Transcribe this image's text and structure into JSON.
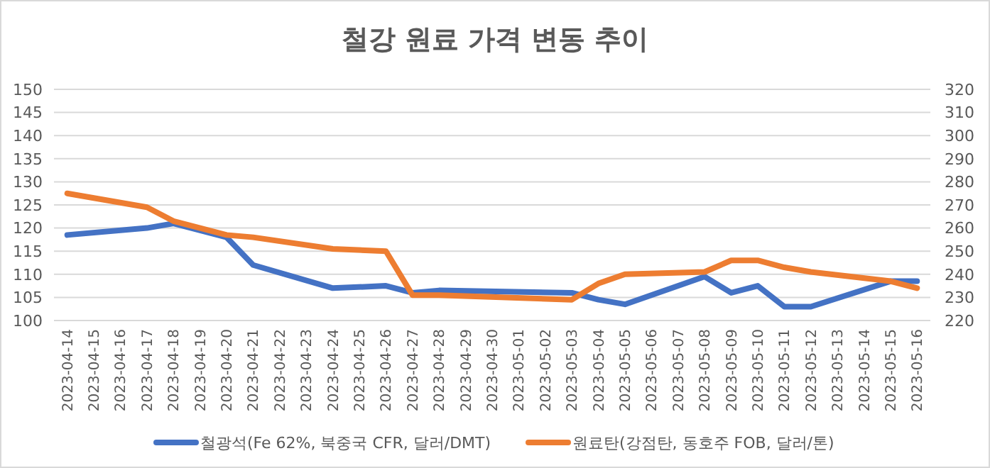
{
  "chart_data": {
    "type": "line",
    "title": "철강 원료 가격 변동 추이",
    "x": [
      "2023-04-14",
      "2023-04-17",
      "2023-04-18",
      "2023-04-20",
      "2023-04-21",
      "2023-04-24",
      "2023-04-26",
      "2023-04-27",
      "2023-04-28",
      "2023-05-03",
      "2023-05-04",
      "2023-05-05",
      "2023-05-08",
      "2023-05-09",
      "2023-05-10",
      "2023-05-11",
      "2023-05-12",
      "2023-05-15",
      "2023-05-16"
    ],
    "series": [
      {
        "name": "철광석(Fe 62%, 북중국 CFR, 달러/DMT)",
        "color": "#4472c4",
        "values": [
          118.5,
          120,
          121,
          118,
          112,
          107,
          107.5,
          106,
          106.5,
          106,
          104.5,
          103.5,
          109.5,
          106,
          107.5,
          103,
          103,
          108.5,
          108.5
        ]
      },
      {
        "name": "원료탄(강점탄, 동호주 FOB, 달러/톤)",
        "color": "#ed7d31",
        "axis": "y2",
        "values": [
          275,
          269,
          263,
          257,
          256,
          251,
          250,
          231,
          231,
          229,
          236,
          240,
          241,
          246,
          246,
          243,
          241,
          237,
          234
        ]
      }
    ],
    "xlim": [
      "2023-04-13T12:00",
      "2023-05-16T12:00"
    ],
    "xticks": [
      "2023-04-14",
      "2023-04-15",
      "2023-04-16",
      "2023-04-17",
      "2023-04-18",
      "2023-04-19",
      "2023-04-20",
      "2023-04-21",
      "2023-04-22",
      "2023-04-23",
      "2023-04-24",
      "2023-04-25",
      "2023-04-26",
      "2023-04-27",
      "2023-04-28",
      "2023-04-29",
      "2023-04-30",
      "2023-05-01",
      "2023-05-02",
      "2023-05-03",
      "2023-05-04",
      "2023-05-05",
      "2023-05-06",
      "2023-05-07",
      "2023-05-08",
      "2023-05-09",
      "2023-05-10",
      "2023-05-11",
      "2023-05-12",
      "2023-05-13",
      "2023-05-14",
      "2023-05-15",
      "2023-05-16"
    ],
    "ylim": [
      100,
      150
    ],
    "yticks": [
      100,
      105,
      110,
      115,
      120,
      125,
      130,
      135,
      140,
      145,
      150
    ],
    "y2lim": [
      220,
      320
    ],
    "y2ticks": [
      220,
      230,
      240,
      250,
      260,
      270,
      280,
      290,
      300,
      310,
      320
    ],
    "grid": "y",
    "legend": "bottom",
    "marker": "none",
    "line_style": "solid"
  }
}
